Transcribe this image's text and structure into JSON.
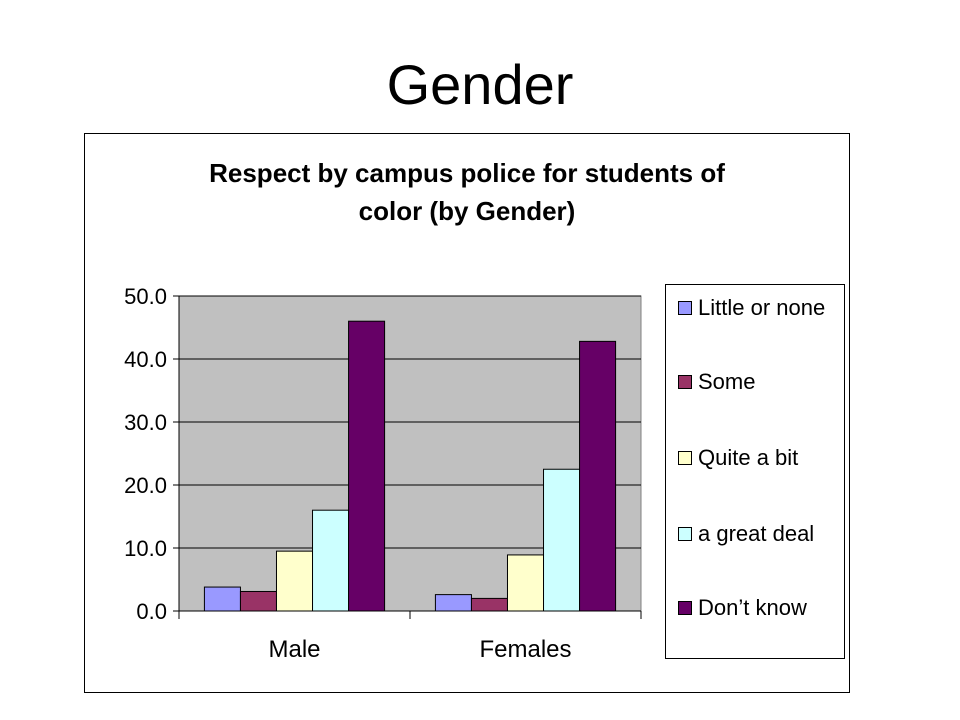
{
  "slide": {
    "title": "Gender"
  },
  "chart_data": {
    "type": "bar",
    "title_lines": [
      "Respect by campus police for students of",
      "color (by Gender)"
    ],
    "categories": [
      "Male",
      "Females"
    ],
    "series": [
      {
        "name": "Little or none",
        "color": "#9999ff",
        "values": [
          3.8,
          2.6
        ]
      },
      {
        "name": "Some",
        "color": "#993366",
        "values": [
          3.1,
          2.0
        ]
      },
      {
        "name": "Quite a bit",
        "color": "#ffffcc",
        "values": [
          9.5,
          8.9
        ]
      },
      {
        "name": "a great deal",
        "color": "#ccffff",
        "values": [
          16.0,
          22.5
        ]
      },
      {
        "name": "Don’t know",
        "color": "#660066",
        "values": [
          46.0,
          42.8
        ]
      }
    ],
    "ylim": [
      0,
      50
    ],
    "yticks": [
      "0.0",
      "10.0",
      "20.0",
      "30.0",
      "40.0",
      "50.0"
    ],
    "plot_background": "#c0c0c0",
    "grid": true,
    "legend_position": "right"
  }
}
